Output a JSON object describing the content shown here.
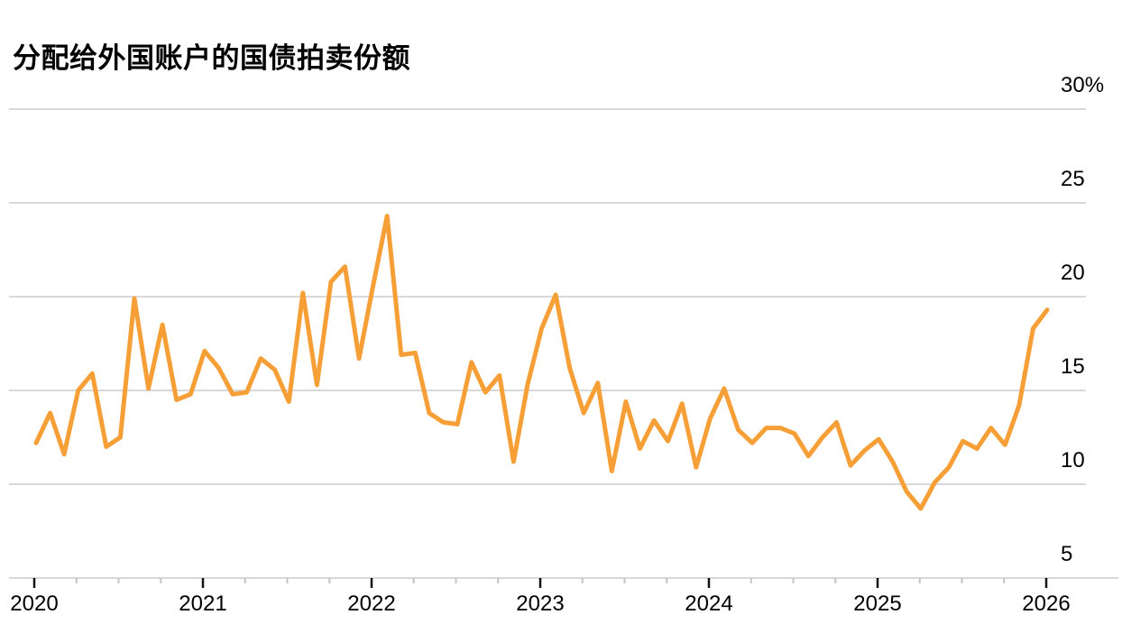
{
  "chart_data": {
    "type": "line",
    "title": "分配给外国账户的国债拍卖份额",
    "xlabel": "",
    "ylabel": "",
    "unit": "%",
    "grid": "horizontal",
    "legend": "none",
    "line_color": "#F79F37",
    "gridline_color": "#D9D9D9",
    "year_tick_color": "#111111",
    "quarter_tick_color": "#C4C4C4",
    "text_color": "#000000",
    "y_tick_labels": [
      "30%",
      "25",
      "20",
      "15",
      "10",
      "5"
    ],
    "y_tick_values": [
      30,
      25,
      20,
      15,
      10,
      5
    ],
    "x_tick_labels": [
      "2020",
      "2021",
      "2022",
      "2023",
      "2024",
      "2025",
      "2026"
    ],
    "ylim": [
      5,
      30
    ],
    "xlim": [
      "2020-01",
      "2026-01"
    ],
    "months": [
      "2020-01",
      "2020-02",
      "2020-03",
      "2020-04",
      "2020-05",
      "2020-06",
      "2020-07",
      "2020-08",
      "2020-09",
      "2020-10",
      "2020-11",
      "2020-12",
      "2021-01",
      "2021-02",
      "2021-03",
      "2021-04",
      "2021-05",
      "2021-06",
      "2021-07",
      "2021-08",
      "2021-09",
      "2021-10",
      "2021-11",
      "2021-12",
      "2022-01",
      "2022-02",
      "2022-03",
      "2022-04",
      "2022-05",
      "2022-06",
      "2022-07",
      "2022-08",
      "2022-09",
      "2022-10",
      "2022-11",
      "2022-12",
      "2023-01",
      "2023-02",
      "2023-03",
      "2023-04",
      "2023-05",
      "2023-06",
      "2023-07",
      "2023-08",
      "2023-09",
      "2023-10",
      "2023-11",
      "2023-12",
      "2024-01",
      "2024-02",
      "2024-03",
      "2024-04",
      "2024-05",
      "2024-06",
      "2024-07",
      "2024-08",
      "2024-09",
      "2024-10",
      "2024-11",
      "2024-12",
      "2025-01",
      "2025-02",
      "2025-03",
      "2025-04",
      "2025-05",
      "2025-06",
      "2025-07",
      "2025-08",
      "2025-09",
      "2025-10",
      "2025-11",
      "2025-12",
      "2026-01"
    ],
    "values": [
      12.2,
      13.8,
      11.6,
      15.0,
      15.9,
      12.0,
      12.5,
      19.9,
      15.1,
      18.5,
      14.5,
      14.8,
      17.1,
      16.2,
      14.8,
      14.9,
      16.7,
      16.1,
      14.4,
      20.2,
      15.3,
      20.8,
      21.6,
      16.7,
      20.6,
      24.3,
      16.9,
      17.0,
      13.8,
      13.3,
      13.2,
      16.5,
      14.9,
      15.8,
      11.2,
      15.3,
      18.3,
      20.1,
      16.2,
      13.8,
      15.4,
      10.7,
      14.4,
      11.9,
      13.4,
      12.3,
      14.3,
      10.9,
      13.5,
      15.1,
      12.9,
      12.2,
      13.0,
      13.0,
      12.7,
      11.5,
      12.5,
      13.3,
      11.0,
      11.8,
      12.4,
      11.2,
      9.6,
      8.7,
      10.1,
      10.9,
      12.3,
      11.9,
      13.0,
      12.1,
      14.2,
      18.3,
      19.3
    ]
  }
}
